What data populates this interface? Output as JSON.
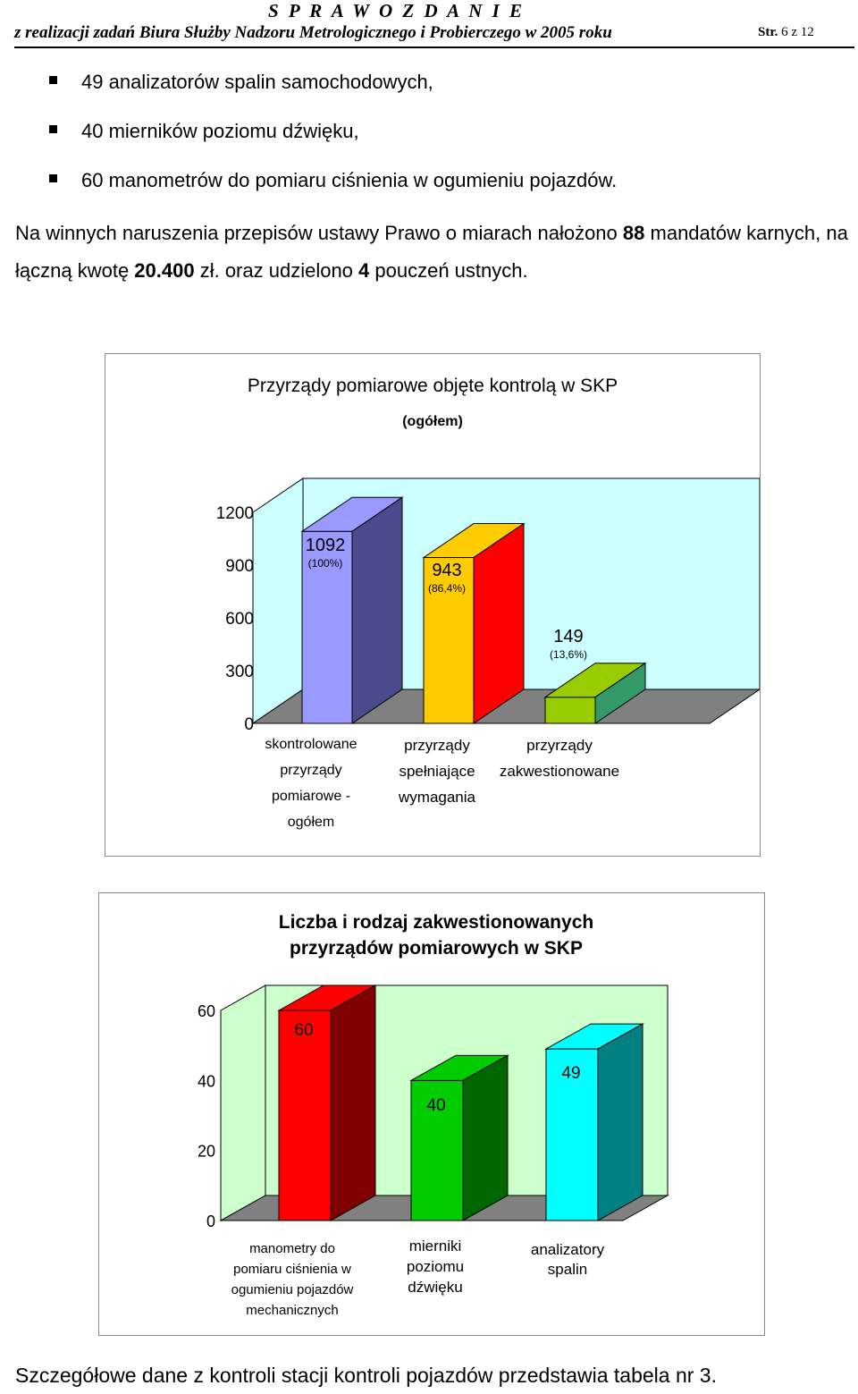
{
  "header": {
    "title": "S P R A W O Z D A N I E",
    "subtitle": "z realizacji zadań Biura Służby Nadzoru Metrologicznego i Probierczego w 2005 roku",
    "page_label": "Str.",
    "page_number": "6 z 12"
  },
  "bullets": [
    {
      "num": "49",
      "text": " analizatorów spalin samochodowych,"
    },
    {
      "num": "40",
      "text": " mierników poziomu dźwięku,"
    },
    {
      "num": "60",
      "text": " manometrów do pomiaru ciśnienia w ogumieniu pojazdów."
    }
  ],
  "paragraph": {
    "part1": "Na winnych naruszenia przepisów ustawy Prawo o miarach nałożono ",
    "num1": "88",
    "part2": " mandatów karnych, na łączną kwotę ",
    "num2": "20.400",
    "part3": " zł. oraz udzielono ",
    "num3": "4",
    "part4": " pouczeń ustnych."
  },
  "footer": "Szczegółowe dane z kontroli stacji kontroli pojazdów przedstawia tabela nr 3.",
  "chart_data": [
    {
      "type": "bar",
      "title": "Przyrządy pomiarowe objęte kontrolą w SKP",
      "subtitle": "(ogółem)",
      "ylim": [
        0,
        1200
      ],
      "yticks": [
        "0",
        "300",
        "600",
        "900",
        "1200"
      ],
      "categories": [
        [
          "skontrolowane",
          "przyrządy",
          "pomiarowe -",
          "ogółem"
        ],
        [
          "przyrządy",
          "spełniające",
          "wymagania"
        ],
        [
          "przyrządy",
          "zakwestionowane"
        ]
      ],
      "values": [
        1092,
        943,
        149
      ],
      "value_labels": [
        "1092",
        "943",
        "149"
      ],
      "percent_labels": [
        "(100%)",
        "(86,4%)",
        "(13,6%)"
      ],
      "colors": [
        "#9999ff",
        "#ffcc00",
        "#99cc00"
      ],
      "side_colors": [
        "#4a4a8c",
        "#ff0000",
        "#339966"
      ],
      "background": "#ccffff",
      "floor": "#808080"
    },
    {
      "type": "bar",
      "title": "Liczba i rodzaj zakwestionowanych",
      "title2": "przyrządów pomiarowych w SKP",
      "ylim": [
        0,
        60
      ],
      "yticks": [
        "0",
        "20",
        "40",
        "60"
      ],
      "categories": [
        [
          "manometry do",
          "pomiaru ciśnienia w",
          "ogumieniu pojazdów",
          "mechanicznych"
        ],
        [
          "mierniki",
          "poziomu",
          "dźwięku"
        ],
        [
          "analizatory",
          "spalin"
        ]
      ],
      "values": [
        60,
        40,
        49
      ],
      "value_labels": [
        "60",
        "40",
        "49"
      ],
      "colors": [
        "#ff0000",
        "#00cc00",
        "#00ffff"
      ],
      "side_colors": [
        "#800000",
        "#006600",
        "#008080"
      ],
      "background": "#ccffcc",
      "floor": "#808080"
    }
  ]
}
